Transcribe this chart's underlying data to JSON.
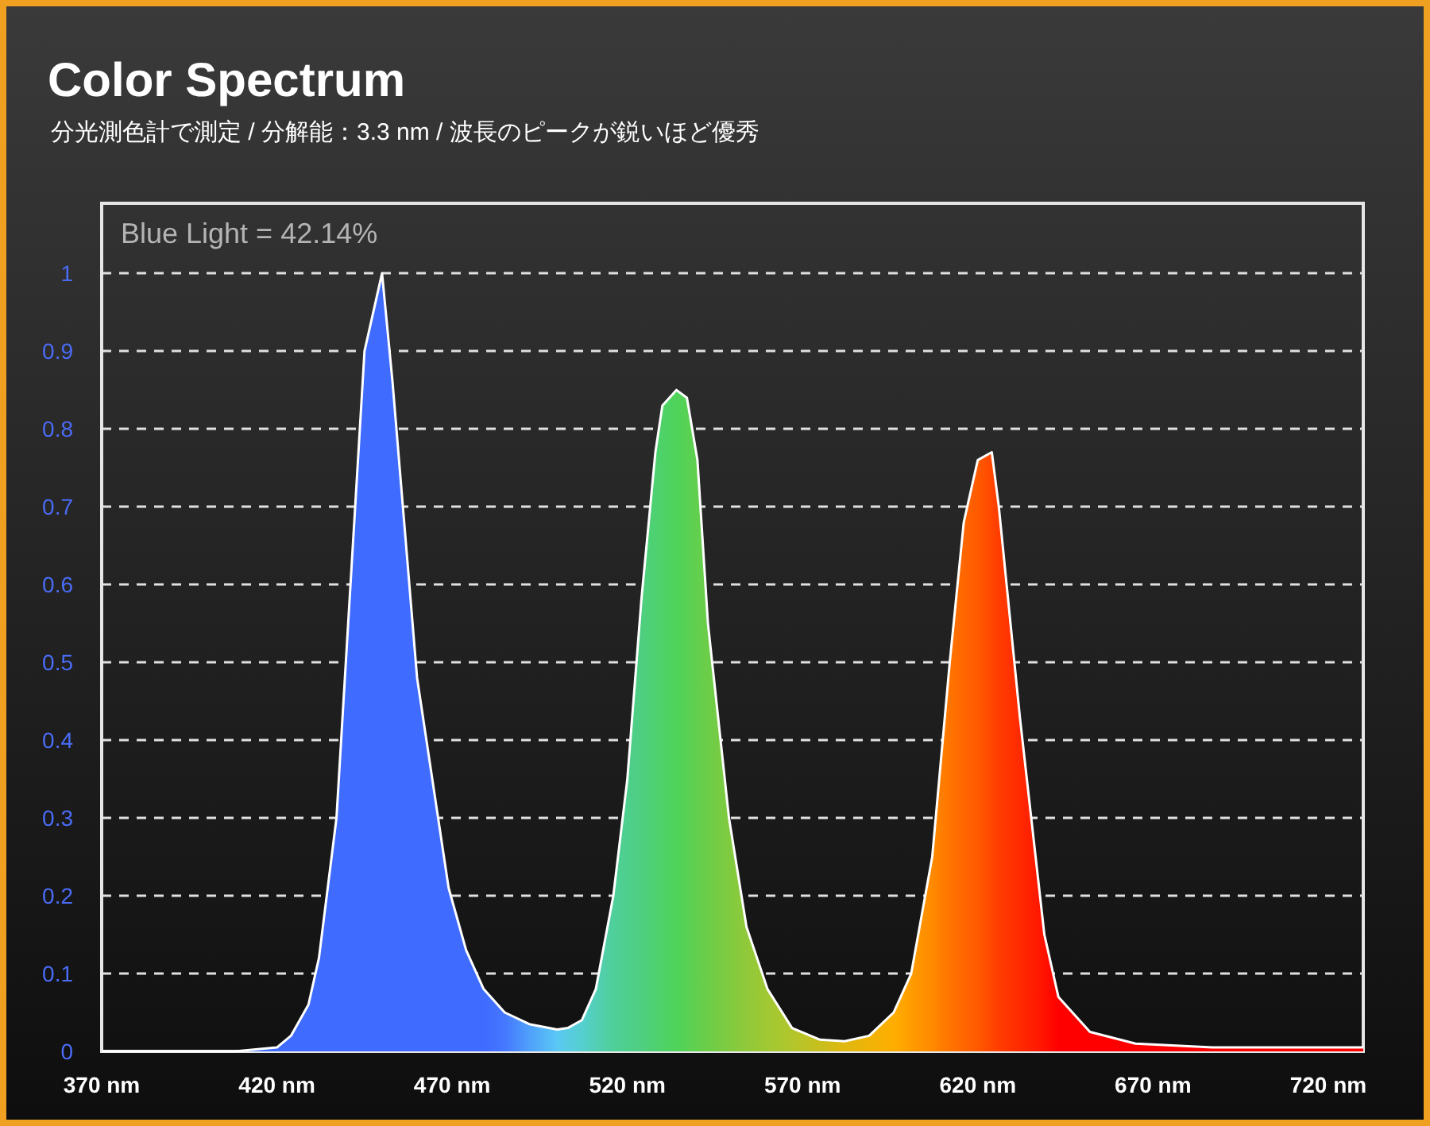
{
  "chart_data": {
    "type": "area",
    "title": "Color Spectrum",
    "subtitle": "分光測色計で測定 / 分解能：3.3 nm / 波長のピークが鋭いほど優秀",
    "annotations": [
      "Blue Light = 42.14%"
    ],
    "x": [
      370,
      408,
      420,
      424,
      429,
      432,
      437,
      441,
      445,
      450,
      453,
      460,
      469,
      474,
      479,
      485,
      492,
      500,
      503,
      507,
      511,
      516,
      520,
      524,
      528,
      530,
      534,
      537,
      540,
      543,
      549,
      554,
      560,
      567,
      575,
      582,
      589,
      596,
      601,
      607,
      612,
      616,
      620,
      624,
      626,
      632,
      639,
      643,
      652,
      665,
      687,
      730
    ],
    "series": [
      {
        "values": [
          0,
          0,
          0.005,
          0.02,
          0.06,
          0.12,
          0.3,
          0.6,
          0.9,
          1.0,
          0.86,
          0.48,
          0.21,
          0.13,
          0.08,
          0.05,
          0.035,
          0.028,
          0.03,
          0.04,
          0.08,
          0.2,
          0.35,
          0.58,
          0.77,
          0.83,
          0.85,
          0.84,
          0.76,
          0.55,
          0.3,
          0.16,
          0.08,
          0.03,
          0.015,
          0.013,
          0.02,
          0.05,
          0.1,
          0.25,
          0.5,
          0.68,
          0.76,
          0.77,
          0.7,
          0.43,
          0.15,
          0.07,
          0.025,
          0.01,
          0.005,
          0.005
        ],
        "colors": [
          "#3f6bff",
          "#3f6bff",
          "#3f6bff",
          "#3f6bff",
          "#3f6bff",
          "#3f6bff",
          "#3f6bff",
          "#3f6bff",
          "#3f6bff",
          "#3f6bff",
          "#3f6bff",
          "#3f6bff",
          "#3f6bff",
          "#3f6bff",
          "#3f6bff",
          "#4577ff",
          "#4fa0fb",
          "#5bc8f5",
          "#58cce2",
          "#55cfd0",
          "#52cfb5",
          "#4fcf9a",
          "#4ecf8c",
          "#4ecf80",
          "#4ed170",
          "#4ed268",
          "#4fd35a",
          "#58d155",
          "#62cf4e",
          "#6ccd48",
          "#80cb40",
          "#90c93a",
          "#a0c833",
          "#b2c62c",
          "#c8bf1e",
          "#e0b80f",
          "#f0b308",
          "#ffae00",
          "#ff9c00",
          "#ff8a00",
          "#ff7400",
          "#ff6600",
          "#ff5a00",
          "#ff4600",
          "#ff3c00",
          "#ff2a00",
          "#ff1200",
          "#ff0000",
          "#ff0000",
          "#ff0000",
          "#ff0000",
          "#ff0000"
        ]
      }
    ],
    "xlim": [
      370,
      730
    ],
    "xticks": [
      {
        "value": 370,
        "label": "370 nm"
      },
      {
        "value": 420,
        "label": "420 nm"
      },
      {
        "value": 470,
        "label": "470 nm"
      },
      {
        "value": 520,
        "label": "520 nm"
      },
      {
        "value": 570,
        "label": "570 nm"
      },
      {
        "value": 620,
        "label": "620 nm"
      },
      {
        "value": 670,
        "label": "670 nm"
      },
      {
        "value": 720,
        "label": "720 nm"
      }
    ],
    "ylim": [
      0,
      1.09
    ],
    "yticks": [
      0,
      0.1,
      0.2,
      0.3,
      0.4,
      0.5,
      0.6,
      0.7,
      0.8,
      0.9,
      1
    ],
    "grid": "y",
    "marker": "none",
    "line_style": "solid"
  }
}
